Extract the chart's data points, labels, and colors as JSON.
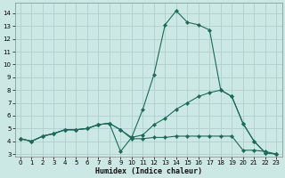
{
  "xlabel": "Humidex (Indice chaleur)",
  "xlim": [
    -0.5,
    23.5
  ],
  "ylim": [
    2.8,
    14.8
  ],
  "yticks": [
    3,
    4,
    5,
    6,
    7,
    8,
    9,
    10,
    11,
    12,
    13,
    14
  ],
  "xticks": [
    0,
    1,
    2,
    3,
    4,
    5,
    6,
    7,
    8,
    9,
    10,
    11,
    12,
    13,
    14,
    15,
    16,
    17,
    18,
    19,
    20,
    21,
    22,
    23
  ],
  "bg_color": "#cce8e4",
  "grid_color": "#b0cece",
  "line_color": "#1a6b5a",
  "series": [
    {
      "x": [
        0,
        1,
        2,
        3,
        4,
        5,
        6,
        7,
        8,
        9,
        10,
        11,
        12,
        13,
        14,
        15,
        16,
        17,
        18,
        19,
        20,
        21,
        22,
        23
      ],
      "y": [
        4.2,
        4.0,
        4.4,
        4.6,
        4.9,
        4.9,
        5.0,
        5.3,
        5.4,
        3.2,
        4.3,
        6.5,
        9.2,
        13.1,
        14.2,
        13.3,
        13.1,
        12.7,
        8.0,
        7.5,
        5.4,
        4.0,
        3.1,
        3.0
      ]
    },
    {
      "x": [
        0,
        1,
        2,
        3,
        4,
        5,
        6,
        7,
        8,
        9,
        10,
        11,
        12,
        13,
        14,
        15,
        16,
        17,
        18,
        19,
        20,
        21,
        22,
        23
      ],
      "y": [
        4.2,
        4.0,
        4.4,
        4.6,
        4.9,
        4.9,
        5.0,
        5.3,
        5.4,
        4.9,
        4.3,
        4.5,
        5.3,
        5.8,
        6.5,
        7.0,
        7.5,
        7.8,
        8.0,
        7.5,
        5.4,
        4.0,
        3.1,
        3.0
      ]
    },
    {
      "x": [
        0,
        1,
        2,
        3,
        4,
        5,
        6,
        7,
        8,
        9,
        10,
        11,
        12,
        13,
        14,
        15,
        16,
        17,
        18,
        19,
        20,
        21,
        22,
        23
      ],
      "y": [
        4.2,
        4.0,
        4.4,
        4.6,
        4.9,
        4.9,
        5.0,
        5.3,
        5.4,
        4.9,
        4.2,
        4.2,
        4.3,
        4.3,
        4.4,
        4.4,
        4.4,
        4.4,
        4.4,
        4.4,
        3.3,
        3.3,
        3.2,
        3.0
      ]
    }
  ]
}
